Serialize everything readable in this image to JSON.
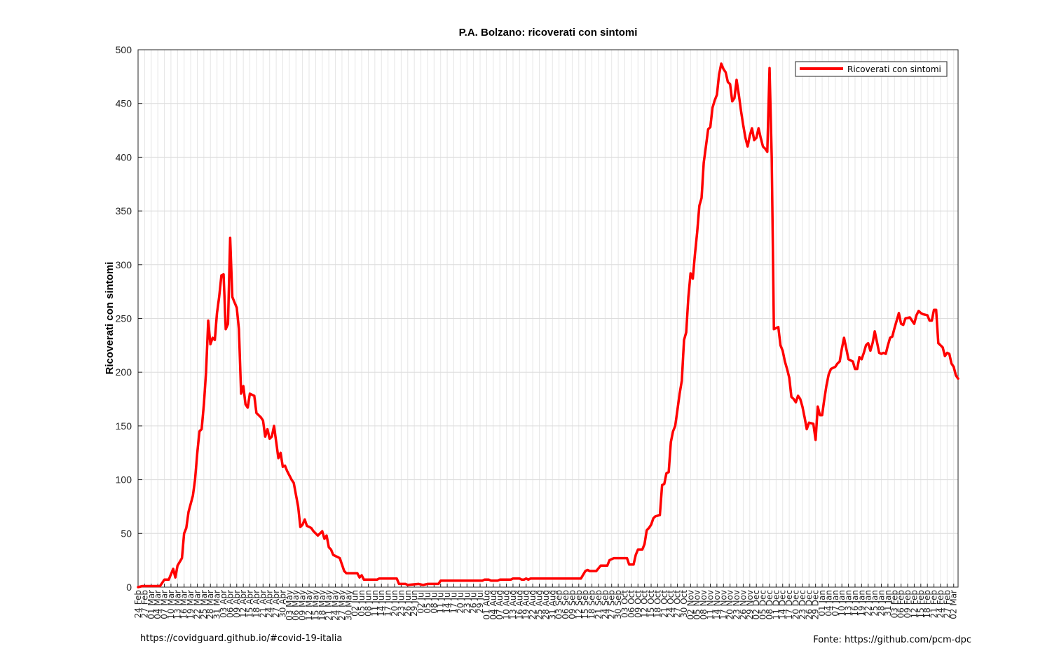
{
  "chart_data": {
    "type": "line",
    "title": "P.A. Bolzano: ricoverati con sintomi",
    "ylabel": "Ricoverati con sintomi",
    "xlabel": "",
    "ylim": [
      0,
      500
    ],
    "yticks": [
      0,
      50,
      100,
      150,
      200,
      250,
      300,
      350,
      400,
      450,
      500
    ],
    "grid": true,
    "legend_position": "top-right",
    "x_start": "2020-02-24",
    "x_end": "2021-03-04",
    "x_tick_labels": [
      "24 Feb",
      "27 Feb",
      "01 Mar",
      "04 Mar",
      "07 Mar",
      "10 Mar",
      "13 Mar",
      "16 Mar",
      "19 Mar",
      "22 Mar",
      "25 Mar",
      "28 Mar",
      "31 Mar",
      "03 Apr",
      "06 Apr",
      "09 Apr",
      "12 Apr",
      "15 Apr",
      "18 Apr",
      "21 Apr",
      "24 Apr",
      "27 Apr",
      "30 Apr",
      "03 May",
      "06 May",
      "09 May",
      "12 May",
      "15 May",
      "18 May",
      "21 May",
      "24 May",
      "27 May",
      "30 May",
      "02 Jun",
      "05 Jun",
      "08 Jun",
      "11 Jun",
      "14 Jun",
      "17 Jun",
      "20 Jun",
      "23 Jun",
      "26 Jun",
      "29 Jun",
      "02 Jul",
      "05 Jul",
      "08 Jul",
      "11 Jul",
      "14 Jul",
      "17 Jul",
      "20 Jul",
      "23 Jul",
      "26 Jul",
      "29 Jul",
      "01 Aug",
      "04 Aug",
      "07 Aug",
      "10 Aug",
      "13 Aug",
      "16 Aug",
      "19 Aug",
      "22 Aug",
      "25 Aug",
      "28 Aug",
      "31 Aug",
      "03 Sep",
      "06 Sep",
      "09 Sep",
      "12 Sep",
      "15 Sep",
      "18 Sep",
      "21 Sep",
      "24 Sep",
      "27 Sep",
      "30 Sep",
      "03 Oct",
      "06 Oct",
      "09 Oct",
      "12 Oct",
      "15 Oct",
      "18 Oct",
      "21 Oct",
      "24 Oct",
      "27 Oct",
      "30 Oct",
      "02 Nov",
      "05 Nov",
      "08 Nov",
      "11 Nov",
      "14 Nov",
      "17 Nov",
      "20 Nov",
      "23 Nov",
      "26 Nov",
      "29 Nov",
      "02 Dec",
      "05 Dec",
      "08 Dec",
      "11 Dec",
      "14 Dec",
      "17 Dec",
      "20 Dec",
      "23 Dec",
      "26 Dec",
      "29 Dec",
      "01 Jan",
      "04 Jan",
      "07 Jan",
      "10 Jan",
      "13 Jan",
      "16 Jan",
      "19 Jan",
      "22 Jan",
      "25 Jan",
      "28 Jan",
      "31 Jan",
      "03 Feb",
      "06 Feb",
      "09 Feb",
      "12 Feb",
      "15 Feb",
      "18 Feb",
      "21 Feb",
      "24 Feb",
      "27 Feb",
      "02 Mar"
    ],
    "series": [
      {
        "name": "Ricoverati con sintomi",
        "color": "#ff0000",
        "points": [
          [
            "2020-02-24",
            0
          ],
          [
            "2020-02-26",
            1
          ],
          [
            "2020-03-05",
            1
          ],
          [
            "2020-03-07",
            7
          ],
          [
            "2020-03-09",
            7
          ],
          [
            "2020-03-11",
            17
          ],
          [
            "2020-03-12",
            9
          ],
          [
            "2020-03-13",
            20
          ],
          [
            "2020-03-15",
            27
          ],
          [
            "2020-03-16",
            50
          ],
          [
            "2020-03-17",
            55
          ],
          [
            "2020-03-18",
            70
          ],
          [
            "2020-03-20",
            85
          ],
          [
            "2020-03-21",
            100
          ],
          [
            "2020-03-22",
            125
          ],
          [
            "2020-03-23",
            145
          ],
          [
            "2020-03-24",
            147
          ],
          [
            "2020-03-25",
            170
          ],
          [
            "2020-03-26",
            200
          ],
          [
            "2020-03-27",
            248
          ],
          [
            "2020-03-28",
            226
          ],
          [
            "2020-03-29",
            232
          ],
          [
            "2020-03-30",
            230
          ],
          [
            "2020-03-31",
            255
          ],
          [
            "2020-04-01",
            270
          ],
          [
            "2020-04-02",
            290
          ],
          [
            "2020-04-03",
            291
          ],
          [
            "2020-04-04",
            240
          ],
          [
            "2020-04-05",
            245
          ],
          [
            "2020-04-06",
            325
          ],
          [
            "2020-04-07",
            270
          ],
          [
            "2020-04-08",
            265
          ],
          [
            "2020-04-09",
            260
          ],
          [
            "2020-04-10",
            240
          ],
          [
            "2020-04-11",
            180
          ],
          [
            "2020-04-12",
            187
          ],
          [
            "2020-04-13",
            170
          ],
          [
            "2020-04-14",
            167
          ],
          [
            "2020-04-15",
            180
          ],
          [
            "2020-04-17",
            178
          ],
          [
            "2020-04-18",
            162
          ],
          [
            "2020-04-20",
            158
          ],
          [
            "2020-04-21",
            155
          ],
          [
            "2020-04-22",
            140
          ],
          [
            "2020-04-23",
            147
          ],
          [
            "2020-04-24",
            138
          ],
          [
            "2020-04-25",
            140
          ],
          [
            "2020-04-26",
            150
          ],
          [
            "2020-04-27",
            135
          ],
          [
            "2020-04-28",
            120
          ],
          [
            "2020-04-29",
            125
          ],
          [
            "2020-04-30",
            112
          ],
          [
            "2020-05-01",
            113
          ],
          [
            "2020-05-02",
            108
          ],
          [
            "2020-05-04",
            100
          ],
          [
            "2020-05-05",
            97
          ],
          [
            "2020-05-07",
            75
          ],
          [
            "2020-05-08",
            56
          ],
          [
            "2020-05-09",
            58
          ],
          [
            "2020-05-10",
            63
          ],
          [
            "2020-05-11",
            57
          ],
          [
            "2020-05-13",
            55
          ],
          [
            "2020-05-14",
            52
          ],
          [
            "2020-05-16",
            48
          ],
          [
            "2020-05-18",
            52
          ],
          [
            "2020-05-19",
            45
          ],
          [
            "2020-05-20",
            48
          ],
          [
            "2020-05-21",
            37
          ],
          [
            "2020-05-22",
            35
          ],
          [
            "2020-05-23",
            30
          ],
          [
            "2020-05-26",
            27
          ],
          [
            "2020-05-28",
            15
          ],
          [
            "2020-05-29",
            13
          ],
          [
            "2020-06-03",
            13
          ],
          [
            "2020-06-04",
            9
          ],
          [
            "2020-06-05",
            11
          ],
          [
            "2020-06-06",
            7
          ],
          [
            "2020-06-12",
            7
          ],
          [
            "2020-06-13",
            8
          ],
          [
            "2020-06-21",
            8
          ],
          [
            "2020-06-22",
            3
          ],
          [
            "2020-06-25",
            3
          ],
          [
            "2020-06-26",
            2
          ],
          [
            "2020-07-01",
            3
          ],
          [
            "2020-07-03",
            2
          ],
          [
            "2020-07-05",
            3
          ],
          [
            "2020-07-10",
            3
          ],
          [
            "2020-07-11",
            6
          ],
          [
            "2020-07-30",
            6
          ],
          [
            "2020-07-31",
            7
          ],
          [
            "2020-08-02",
            7
          ],
          [
            "2020-08-03",
            6
          ],
          [
            "2020-08-06",
            6
          ],
          [
            "2020-08-07",
            7
          ],
          [
            "2020-08-12",
            7
          ],
          [
            "2020-08-13",
            8
          ],
          [
            "2020-08-16",
            8
          ],
          [
            "2020-08-17",
            7
          ],
          [
            "2020-08-18",
            7
          ],
          [
            "2020-08-19",
            8
          ],
          [
            "2020-08-20",
            7
          ],
          [
            "2020-08-21",
            8
          ],
          [
            "2020-09-13",
            8
          ],
          [
            "2020-09-15",
            15
          ],
          [
            "2020-09-16",
            16
          ],
          [
            "2020-09-17",
            15
          ],
          [
            "2020-09-20",
            15
          ],
          [
            "2020-09-22",
            20
          ],
          [
            "2020-09-25",
            20
          ],
          [
            "2020-09-26",
            25
          ],
          [
            "2020-09-28",
            27
          ],
          [
            "2020-10-04",
            27
          ],
          [
            "2020-10-05",
            21
          ],
          [
            "2020-10-07",
            21
          ],
          [
            "2020-10-08",
            30
          ],
          [
            "2020-10-09",
            35
          ],
          [
            "2020-10-11",
            35
          ],
          [
            "2020-10-12",
            40
          ],
          [
            "2020-10-13",
            53
          ],
          [
            "2020-10-14",
            55
          ],
          [
            "2020-10-15",
            58
          ],
          [
            "2020-10-16",
            64
          ],
          [
            "2020-10-17",
            66
          ],
          [
            "2020-10-19",
            67
          ],
          [
            "2020-10-20",
            95
          ],
          [
            "2020-10-21",
            96
          ],
          [
            "2020-10-22",
            106
          ],
          [
            "2020-10-23",
            107
          ],
          [
            "2020-10-24",
            135
          ],
          [
            "2020-10-25",
            145
          ],
          [
            "2020-10-26",
            150
          ],
          [
            "2020-10-27",
            165
          ],
          [
            "2020-10-28",
            180
          ],
          [
            "2020-10-29",
            192
          ],
          [
            "2020-10-30",
            230
          ],
          [
            "2020-10-31",
            237
          ],
          [
            "2020-11-01",
            270
          ],
          [
            "2020-11-02",
            292
          ],
          [
            "2020-11-03",
            287
          ],
          [
            "2020-11-04",
            310
          ],
          [
            "2020-11-05",
            330
          ],
          [
            "2020-11-06",
            355
          ],
          [
            "2020-11-07",
            362
          ],
          [
            "2020-11-08",
            395
          ],
          [
            "2020-11-09",
            410
          ],
          [
            "2020-11-10",
            426
          ],
          [
            "2020-11-11",
            428
          ],
          [
            "2020-11-12",
            446
          ],
          [
            "2020-11-13",
            453
          ],
          [
            "2020-11-14",
            458
          ],
          [
            "2020-11-15",
            477
          ],
          [
            "2020-11-16",
            487
          ],
          [
            "2020-11-17",
            482
          ],
          [
            "2020-11-18",
            479
          ],
          [
            "2020-11-19",
            470
          ],
          [
            "2020-11-20",
            468
          ],
          [
            "2020-11-21",
            452
          ],
          [
            "2020-11-22",
            455
          ],
          [
            "2020-11-23",
            472
          ],
          [
            "2020-11-24",
            458
          ],
          [
            "2020-11-25",
            443
          ],
          [
            "2020-11-26",
            430
          ],
          [
            "2020-11-27",
            418
          ],
          [
            "2020-11-28",
            410
          ],
          [
            "2020-11-29",
            420
          ],
          [
            "2020-11-30",
            427
          ],
          [
            "2020-12-01",
            416
          ],
          [
            "2020-12-02",
            418
          ],
          [
            "2020-12-03",
            427
          ],
          [
            "2020-12-04",
            418
          ],
          [
            "2020-12-05",
            410
          ],
          [
            "2020-12-06",
            408
          ],
          [
            "2020-12-07",
            405
          ],
          [
            "2020-12-08",
            483
          ],
          [
            "2020-12-09",
            400
          ],
          [
            "2020-12-10",
            240
          ],
          [
            "2020-12-11",
            241
          ],
          [
            "2020-12-12",
            242
          ],
          [
            "2020-12-13",
            225
          ],
          [
            "2020-12-14",
            220
          ],
          [
            "2020-12-15",
            210
          ],
          [
            "2020-12-16",
            203
          ],
          [
            "2020-12-17",
            195
          ],
          [
            "2020-12-18",
            177
          ],
          [
            "2020-12-19",
            175
          ],
          [
            "2020-12-20",
            172
          ],
          [
            "2020-12-21",
            178
          ],
          [
            "2020-12-22",
            175
          ],
          [
            "2020-12-23",
            168
          ],
          [
            "2020-12-24",
            158
          ],
          [
            "2020-12-25",
            147
          ],
          [
            "2020-12-26",
            153
          ],
          [
            "2020-12-28",
            152
          ],
          [
            "2020-12-29",
            137
          ],
          [
            "2020-12-30",
            168
          ],
          [
            "2020-12-31",
            160
          ],
          [
            "2021-01-01",
            160
          ],
          [
            "2021-01-02",
            175
          ],
          [
            "2021-01-03",
            188
          ],
          [
            "2021-01-04",
            198
          ],
          [
            "2021-01-05",
            203
          ],
          [
            "2021-01-07",
            205
          ],
          [
            "2021-01-08",
            208
          ],
          [
            "2021-01-09",
            210
          ],
          [
            "2021-01-10",
            222
          ],
          [
            "2021-01-11",
            232
          ],
          [
            "2021-01-12",
            222
          ],
          [
            "2021-01-13",
            212
          ],
          [
            "2021-01-15",
            210
          ],
          [
            "2021-01-16",
            203
          ],
          [
            "2021-01-17",
            203
          ],
          [
            "2021-01-18",
            214
          ],
          [
            "2021-01-19",
            212
          ],
          [
            "2021-01-20",
            218
          ],
          [
            "2021-01-21",
            225
          ],
          [
            "2021-01-22",
            227
          ],
          [
            "2021-01-23",
            220
          ],
          [
            "2021-01-24",
            227
          ],
          [
            "2021-01-25",
            238
          ],
          [
            "2021-01-26",
            228
          ],
          [
            "2021-01-27",
            218
          ],
          [
            "2021-01-28",
            217
          ],
          [
            "2021-01-29",
            218
          ],
          [
            "2021-01-30",
            217
          ],
          [
            "2021-01-31",
            225
          ],
          [
            "2021-02-01",
            232
          ],
          [
            "2021-02-02",
            233
          ],
          [
            "2021-02-03",
            241
          ],
          [
            "2021-02-04",
            248
          ],
          [
            "2021-02-05",
            255
          ],
          [
            "2021-02-06",
            245
          ],
          [
            "2021-02-07",
            244
          ],
          [
            "2021-02-08",
            250
          ],
          [
            "2021-02-10",
            251
          ],
          [
            "2021-02-11",
            248
          ],
          [
            "2021-02-12",
            245
          ],
          [
            "2021-02-13",
            253
          ],
          [
            "2021-02-14",
            257
          ],
          [
            "2021-02-15",
            255
          ],
          [
            "2021-02-16",
            254
          ],
          [
            "2021-02-18",
            253
          ],
          [
            "2021-02-19",
            248
          ],
          [
            "2021-02-20",
            248
          ],
          [
            "2021-02-21",
            258
          ],
          [
            "2021-02-22",
            258
          ],
          [
            "2021-02-23",
            227
          ],
          [
            "2021-02-24",
            225
          ],
          [
            "2021-02-25",
            223
          ],
          [
            "2021-02-26",
            215
          ],
          [
            "2021-02-27",
            218
          ],
          [
            "2021-02-28",
            217
          ],
          [
            "2021-03-01",
            208
          ],
          [
            "2021-03-02",
            205
          ],
          [
            "2021-03-03",
            197
          ],
          [
            "2021-03-04",
            194
          ]
        ]
      }
    ]
  },
  "footer": {
    "left": "https://covidguard.github.io/#covid-19-italia",
    "right": "Fonte: https://github.com/pcm-dpc"
  }
}
